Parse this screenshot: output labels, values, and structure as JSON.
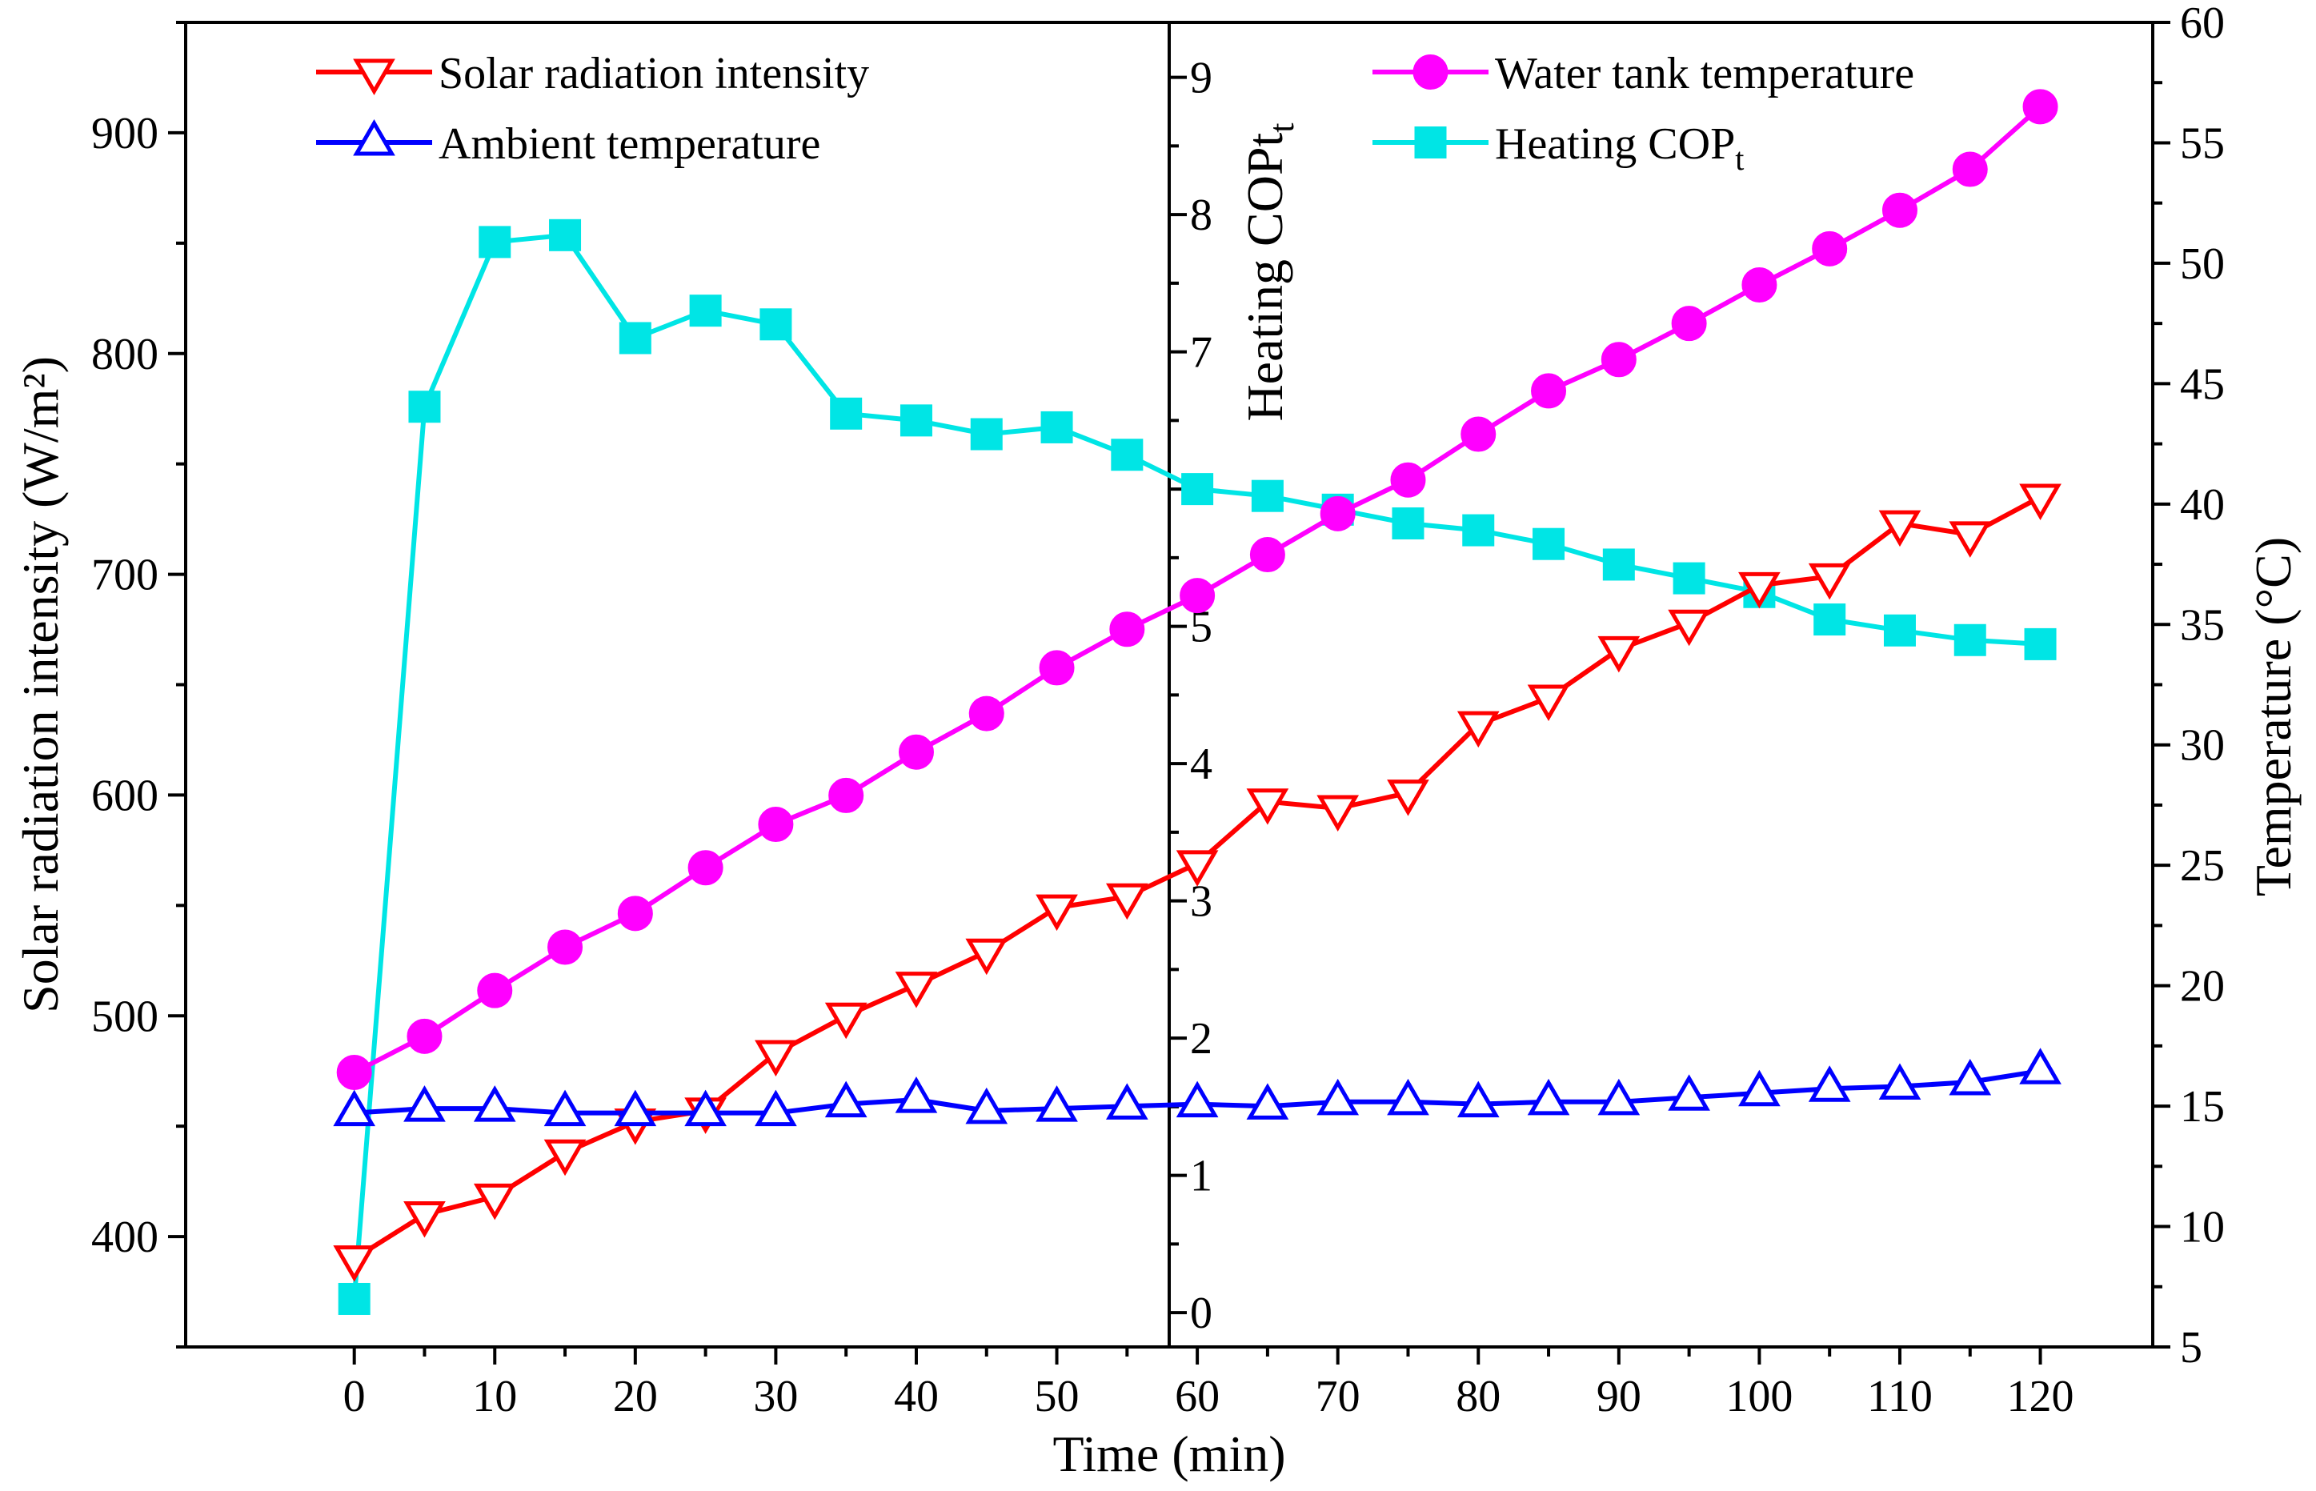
{
  "chart_data": {
    "type": "line",
    "title": "",
    "x": [
      0,
      5,
      10,
      15,
      20,
      25,
      30,
      35,
      40,
      45,
      50,
      55,
      60,
      65,
      70,
      75,
      80,
      85,
      90,
      95,
      100,
      105,
      110,
      115,
      120
    ],
    "xlabel": "Time (min)",
    "xlim": [
      -12,
      128
    ],
    "xticks": [
      0,
      10,
      20,
      30,
      40,
      50,
      60,
      70,
      80,
      90,
      100,
      110,
      120
    ],
    "y_left": {
      "label": "Solar radiation intensity (W/m²)",
      "lim": [
        350,
        950
      ],
      "ticks": [
        400,
        500,
        600,
        700,
        800,
        900
      ]
    },
    "y_right": {
      "label": "Temperature (°C)",
      "lim": [
        5,
        60
      ],
      "ticks": [
        5,
        10,
        15,
        20,
        25,
        30,
        35,
        40,
        45,
        50,
        55,
        60
      ]
    },
    "y_middle": {
      "label": "Heating COPt",
      "lim": [
        -0.25,
        9.4
      ],
      "ticks": [
        0,
        1,
        2,
        3,
        4,
        5,
        6,
        7,
        8,
        9
      ]
    },
    "series": [
      {
        "name": "Solar radiation intensity",
        "axis": "left",
        "color": "#ff0000",
        "marker": "triangle-down",
        "values": [
          390,
          410,
          418,
          438,
          452,
          457,
          483,
          500,
          514,
          529,
          549,
          554,
          569,
          597,
          594,
          601,
          632,
          644,
          666,
          678,
          695,
          699,
          723,
          718,
          735
        ]
      },
      {
        "name": "Ambient temperature",
        "axis": "left",
        "color": "#0000ff",
        "marker": "triangle-up",
        "values": [
          456,
          458,
          458,
          456,
          456,
          456,
          456,
          460,
          462,
          457,
          458,
          459,
          460,
          459,
          461,
          461,
          460,
          461,
          461,
          463,
          465,
          467,
          468,
          470,
          475
        ]
      },
      {
        "name": "Water tank temperature",
        "axis": "right",
        "color": "#ff00ff",
        "marker": "circle",
        "values": [
          16.4,
          17.9,
          19.8,
          21.6,
          23.0,
          24.9,
          26.7,
          27.9,
          29.7,
          31.3,
          33.2,
          34.8,
          36.2,
          37.9,
          39.6,
          41.0,
          42.9,
          44.7,
          46.0,
          47.5,
          49.1,
          50.6,
          52.2,
          53.9,
          56.5
        ]
      },
      {
        "name": "Heating COPt",
        "axis": "middle",
        "color": "#00e5e5",
        "marker": "square",
        "values": [
          0.1,
          6.6,
          7.8,
          7.85,
          7.1,
          7.3,
          7.2,
          6.55,
          6.5,
          6.4,
          6.45,
          6.25,
          6.0,
          5.95,
          5.85,
          5.75,
          5.7,
          5.6,
          5.45,
          5.35,
          5.25,
          5.05,
          4.97,
          4.9,
          4.87
        ]
      }
    ],
    "legend": {
      "left_group": [
        "Solar radiation intensity",
        "Ambient temperature"
      ],
      "right_group": [
        "Water tank temperature",
        "Heating COP"
      ],
      "left_placement": "top-left",
      "right_placement": "top-right",
      "subscript": "t"
    }
  }
}
